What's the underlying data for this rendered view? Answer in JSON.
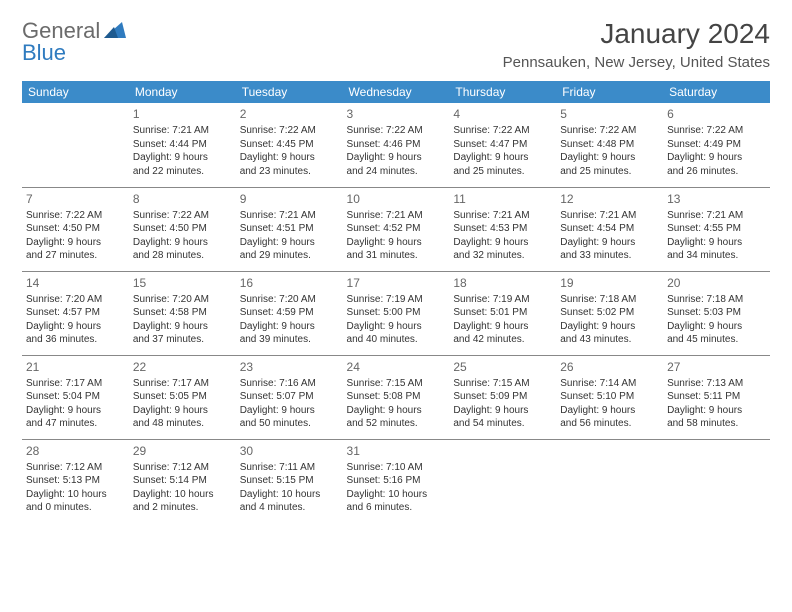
{
  "brand": {
    "part1": "General",
    "part2": "Blue",
    "logo_color": "#2f7bbf",
    "text_color": "#6b6b6b"
  },
  "title": "January 2024",
  "location": "Pennsauken, New Jersey, United States",
  "colors": {
    "header_bg": "#3b8bc9",
    "header_text": "#ffffff",
    "border": "#888888",
    "body_text": "#333333",
    "daynum": "#666666"
  },
  "weekdays": [
    "Sunday",
    "Monday",
    "Tuesday",
    "Wednesday",
    "Thursday",
    "Friday",
    "Saturday"
  ],
  "weeks": [
    [
      null,
      {
        "n": "1",
        "sr": "Sunrise: 7:21 AM",
        "ss": "Sunset: 4:44 PM",
        "d1": "Daylight: 9 hours",
        "d2": "and 22 minutes."
      },
      {
        "n": "2",
        "sr": "Sunrise: 7:22 AM",
        "ss": "Sunset: 4:45 PM",
        "d1": "Daylight: 9 hours",
        "d2": "and 23 minutes."
      },
      {
        "n": "3",
        "sr": "Sunrise: 7:22 AM",
        "ss": "Sunset: 4:46 PM",
        "d1": "Daylight: 9 hours",
        "d2": "and 24 minutes."
      },
      {
        "n": "4",
        "sr": "Sunrise: 7:22 AM",
        "ss": "Sunset: 4:47 PM",
        "d1": "Daylight: 9 hours",
        "d2": "and 25 minutes."
      },
      {
        "n": "5",
        "sr": "Sunrise: 7:22 AM",
        "ss": "Sunset: 4:48 PM",
        "d1": "Daylight: 9 hours",
        "d2": "and 25 minutes."
      },
      {
        "n": "6",
        "sr": "Sunrise: 7:22 AM",
        "ss": "Sunset: 4:49 PM",
        "d1": "Daylight: 9 hours",
        "d2": "and 26 minutes."
      }
    ],
    [
      {
        "n": "7",
        "sr": "Sunrise: 7:22 AM",
        "ss": "Sunset: 4:50 PM",
        "d1": "Daylight: 9 hours",
        "d2": "and 27 minutes."
      },
      {
        "n": "8",
        "sr": "Sunrise: 7:22 AM",
        "ss": "Sunset: 4:50 PM",
        "d1": "Daylight: 9 hours",
        "d2": "and 28 minutes."
      },
      {
        "n": "9",
        "sr": "Sunrise: 7:21 AM",
        "ss": "Sunset: 4:51 PM",
        "d1": "Daylight: 9 hours",
        "d2": "and 29 minutes."
      },
      {
        "n": "10",
        "sr": "Sunrise: 7:21 AM",
        "ss": "Sunset: 4:52 PM",
        "d1": "Daylight: 9 hours",
        "d2": "and 31 minutes."
      },
      {
        "n": "11",
        "sr": "Sunrise: 7:21 AM",
        "ss": "Sunset: 4:53 PM",
        "d1": "Daylight: 9 hours",
        "d2": "and 32 minutes."
      },
      {
        "n": "12",
        "sr": "Sunrise: 7:21 AM",
        "ss": "Sunset: 4:54 PM",
        "d1": "Daylight: 9 hours",
        "d2": "and 33 minutes."
      },
      {
        "n": "13",
        "sr": "Sunrise: 7:21 AM",
        "ss": "Sunset: 4:55 PM",
        "d1": "Daylight: 9 hours",
        "d2": "and 34 minutes."
      }
    ],
    [
      {
        "n": "14",
        "sr": "Sunrise: 7:20 AM",
        "ss": "Sunset: 4:57 PM",
        "d1": "Daylight: 9 hours",
        "d2": "and 36 minutes."
      },
      {
        "n": "15",
        "sr": "Sunrise: 7:20 AM",
        "ss": "Sunset: 4:58 PM",
        "d1": "Daylight: 9 hours",
        "d2": "and 37 minutes."
      },
      {
        "n": "16",
        "sr": "Sunrise: 7:20 AM",
        "ss": "Sunset: 4:59 PM",
        "d1": "Daylight: 9 hours",
        "d2": "and 39 minutes."
      },
      {
        "n": "17",
        "sr": "Sunrise: 7:19 AM",
        "ss": "Sunset: 5:00 PM",
        "d1": "Daylight: 9 hours",
        "d2": "and 40 minutes."
      },
      {
        "n": "18",
        "sr": "Sunrise: 7:19 AM",
        "ss": "Sunset: 5:01 PM",
        "d1": "Daylight: 9 hours",
        "d2": "and 42 minutes."
      },
      {
        "n": "19",
        "sr": "Sunrise: 7:18 AM",
        "ss": "Sunset: 5:02 PM",
        "d1": "Daylight: 9 hours",
        "d2": "and 43 minutes."
      },
      {
        "n": "20",
        "sr": "Sunrise: 7:18 AM",
        "ss": "Sunset: 5:03 PM",
        "d1": "Daylight: 9 hours",
        "d2": "and 45 minutes."
      }
    ],
    [
      {
        "n": "21",
        "sr": "Sunrise: 7:17 AM",
        "ss": "Sunset: 5:04 PM",
        "d1": "Daylight: 9 hours",
        "d2": "and 47 minutes."
      },
      {
        "n": "22",
        "sr": "Sunrise: 7:17 AM",
        "ss": "Sunset: 5:05 PM",
        "d1": "Daylight: 9 hours",
        "d2": "and 48 minutes."
      },
      {
        "n": "23",
        "sr": "Sunrise: 7:16 AM",
        "ss": "Sunset: 5:07 PM",
        "d1": "Daylight: 9 hours",
        "d2": "and 50 minutes."
      },
      {
        "n": "24",
        "sr": "Sunrise: 7:15 AM",
        "ss": "Sunset: 5:08 PM",
        "d1": "Daylight: 9 hours",
        "d2": "and 52 minutes."
      },
      {
        "n": "25",
        "sr": "Sunrise: 7:15 AM",
        "ss": "Sunset: 5:09 PM",
        "d1": "Daylight: 9 hours",
        "d2": "and 54 minutes."
      },
      {
        "n": "26",
        "sr": "Sunrise: 7:14 AM",
        "ss": "Sunset: 5:10 PM",
        "d1": "Daylight: 9 hours",
        "d2": "and 56 minutes."
      },
      {
        "n": "27",
        "sr": "Sunrise: 7:13 AM",
        "ss": "Sunset: 5:11 PM",
        "d1": "Daylight: 9 hours",
        "d2": "and 58 minutes."
      }
    ],
    [
      {
        "n": "28",
        "sr": "Sunrise: 7:12 AM",
        "ss": "Sunset: 5:13 PM",
        "d1": "Daylight: 10 hours",
        "d2": "and 0 minutes."
      },
      {
        "n": "29",
        "sr": "Sunrise: 7:12 AM",
        "ss": "Sunset: 5:14 PM",
        "d1": "Daylight: 10 hours",
        "d2": "and 2 minutes."
      },
      {
        "n": "30",
        "sr": "Sunrise: 7:11 AM",
        "ss": "Sunset: 5:15 PM",
        "d1": "Daylight: 10 hours",
        "d2": "and 4 minutes."
      },
      {
        "n": "31",
        "sr": "Sunrise: 7:10 AM",
        "ss": "Sunset: 5:16 PM",
        "d1": "Daylight: 10 hours",
        "d2": "and 6 minutes."
      },
      null,
      null,
      null
    ]
  ]
}
